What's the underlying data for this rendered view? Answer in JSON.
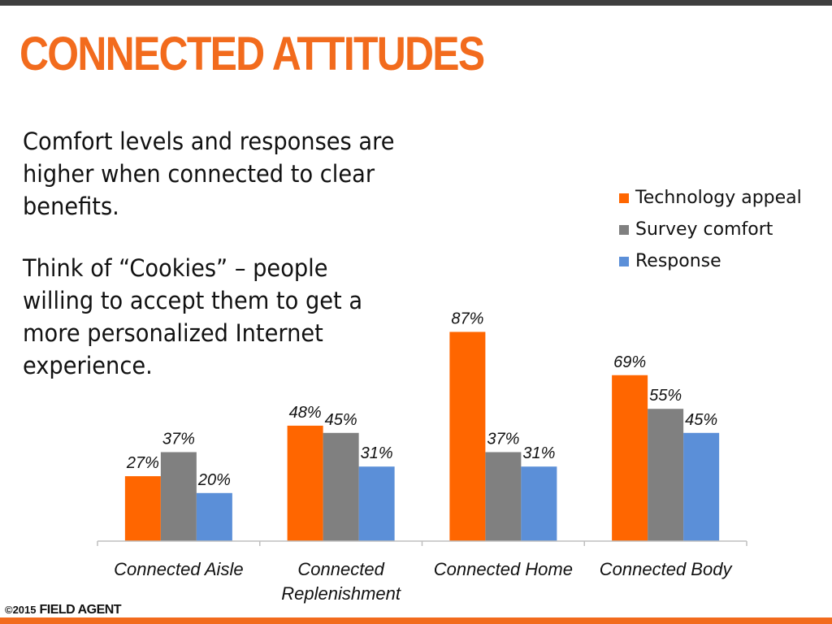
{
  "slide": {
    "title": "CONNECTED ATTITUDES",
    "paragraph1": "Comfort levels and responses are higher when connected to clear benefits.",
    "paragraph2": "Think of “Cookies” – people willing to accept them to get a more personalized Internet experience."
  },
  "footer": {
    "copyright": "©2015",
    "brand": "FIELD AGENT"
  },
  "colors": {
    "accent": "#f26b1d",
    "header_bar": "#3f3f3f"
  },
  "chart_data": {
    "type": "bar",
    "title": "",
    "xlabel": "",
    "ylabel": "",
    "ylim": [
      0,
      100
    ],
    "grid": false,
    "legend_position": "top-right",
    "categories": [
      "Connected Aisle",
      "Connected Replenishment",
      "Connected Home",
      "Connected Body"
    ],
    "category_lines": [
      [
        "Connected Aisle"
      ],
      [
        "Connected",
        "Replenishment"
      ],
      [
        "Connected Home"
      ],
      [
        "Connected Body"
      ]
    ],
    "series": [
      {
        "name": "Technology appeal",
        "color": "#ff6600",
        "values": [
          27,
          48,
          87,
          69
        ],
        "labels": [
          "27%",
          "48%",
          "87%",
          "69%"
        ]
      },
      {
        "name": "Survey comfort",
        "color": "#808080",
        "values": [
          37,
          45,
          37,
          55
        ],
        "labels": [
          "37%",
          "45%",
          "37%",
          "55%"
        ]
      },
      {
        "name": "Response",
        "color": "#5b8fd8",
        "values": [
          20,
          31,
          31,
          45
        ],
        "labels": [
          "20%",
          "31%",
          "31%",
          "45%"
        ]
      }
    ]
  }
}
